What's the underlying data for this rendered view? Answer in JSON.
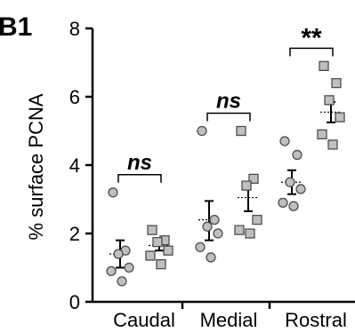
{
  "panel_label": "B1",
  "colors": {
    "marker_fill": "#bfbfbf",
    "marker_stroke": "#4d4d4d",
    "axis": "#000000"
  },
  "chart_data": {
    "type": "scatter",
    "title": "",
    "ylabel": "% surface PCNA",
    "xlabel": "",
    "ylim": [
      0,
      8
    ],
    "yticks": [
      "0",
      "2",
      "4",
      "6",
      "8"
    ],
    "grid": false,
    "legend": "none",
    "categories": [
      "Caudal",
      "Medial",
      "Rostral"
    ],
    "groups": [
      {
        "category": "Caudal",
        "significance": "ns",
        "series": [
          {
            "marker": "circle",
            "points": [
              3.2,
              1.5,
              1.4,
              1.0,
              0.9,
              0.6
            ],
            "mean": 1.4,
            "sem": [
              1.0,
              1.8
            ]
          },
          {
            "marker": "square",
            "points": [
              2.1,
              1.8,
              1.75,
              1.5,
              1.35,
              1.1
            ],
            "mean": 1.65,
            "sem": [
              1.5,
              1.85
            ]
          }
        ]
      },
      {
        "category": "Medial",
        "significance": "ns",
        "series": [
          {
            "marker": "circle",
            "points": [
              5.0,
              2.4,
              2.2,
              2.0,
              1.6,
              1.3
            ],
            "mean": 2.4,
            "sem": [
              1.8,
              2.95
            ]
          },
          {
            "marker": "square",
            "points": [
              5.0,
              3.6,
              3.4,
              2.4,
              2.1,
              2.0
            ],
            "mean": 3.05,
            "sem": [
              2.65,
              3.5
            ]
          }
        ]
      },
      {
        "category": "Rostral",
        "significance": "**",
        "series": [
          {
            "marker": "circle",
            "points": [
              4.7,
              4.3,
              3.5,
              3.3,
              2.9,
              2.8
            ],
            "mean": 3.5,
            "sem": [
              3.15,
              3.85
            ]
          },
          {
            "marker": "square",
            "points": [
              6.9,
              6.4,
              5.9,
              5.4,
              4.9,
              4.6
            ],
            "mean": 5.55,
            "sem": [
              5.25,
              5.85
            ]
          }
        ]
      }
    ]
  }
}
